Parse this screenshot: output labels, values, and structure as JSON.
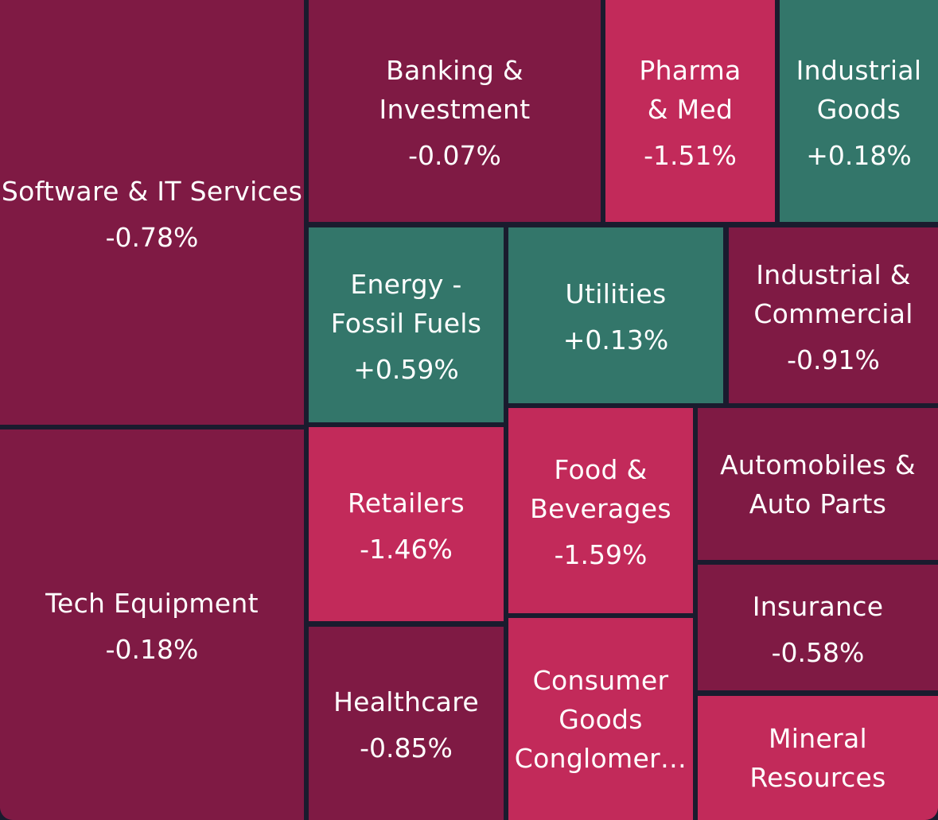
{
  "chart_data": {
    "type": "treemap",
    "title": "",
    "colors": {
      "negative_mild": "#7f1a44",
      "negative_strong": "#c22a5a",
      "positive": "#33766a",
      "gap": "#1a1b2e"
    },
    "sectors": [
      {
        "id": "software-it-services",
        "name": "Software & IT Services",
        "change": "-0.78%",
        "tone": "negative_mild"
      },
      {
        "id": "tech-equipment",
        "name": "Tech Equipment",
        "change": "-0.18%",
        "tone": "negative_mild"
      },
      {
        "id": "banking-investment",
        "name": "Banking &\nInvestment",
        "change": "-0.07%",
        "tone": "negative_mild"
      },
      {
        "id": "pharma-med",
        "name": "Pharma\n& Med",
        "change": "-1.51%",
        "tone": "negative_strong"
      },
      {
        "id": "industrial-goods",
        "name": "Industrial\nGoods",
        "change": "+0.18%",
        "tone": "positive"
      },
      {
        "id": "energy-fossil-fuels",
        "name": "Energy -\nFossil Fuels",
        "change": "+0.59%",
        "tone": "positive"
      },
      {
        "id": "utilities",
        "name": "Utilities",
        "change": "+0.13%",
        "tone": "positive"
      },
      {
        "id": "industrial-commercial",
        "name": "Industrial &\nCommercial",
        "change": "-0.91%",
        "tone": "negative_mild"
      },
      {
        "id": "retailers",
        "name": "Retailers",
        "change": "-1.46%",
        "tone": "negative_strong"
      },
      {
        "id": "food-beverages",
        "name": "Food &\nBeverages",
        "change": "-1.59%",
        "tone": "negative_strong"
      },
      {
        "id": "automobiles-auto-parts",
        "name": "Automobiles &\nAuto Parts",
        "change": "",
        "tone": "negative_mild"
      },
      {
        "id": "insurance",
        "name": "Insurance",
        "change": "-0.58%",
        "tone": "negative_mild"
      },
      {
        "id": "healthcare",
        "name": "Healthcare",
        "change": "-0.85%",
        "tone": "negative_mild"
      },
      {
        "id": "consumer-goods-conglomerates",
        "name": "Consumer\nGoods\nConglomer…",
        "change": "",
        "tone": "negative_strong"
      },
      {
        "id": "mineral-resources",
        "name": "Mineral\nResources",
        "change": "",
        "tone": "negative_strong"
      }
    ]
  }
}
